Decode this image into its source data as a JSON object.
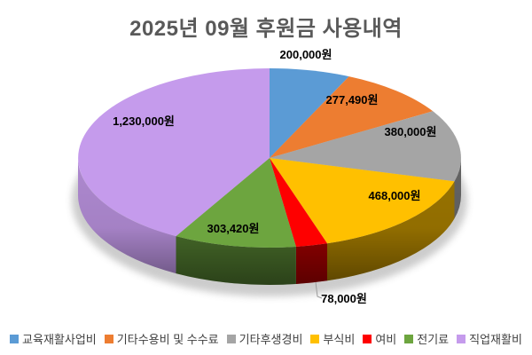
{
  "chart_data": {
    "type": "pie",
    "effect": "3d",
    "title": "2025년 09월 후원금 사용내역",
    "categories": [
      "교육재활사업비",
      "기타수용비 및 수수료",
      "기타후생경비",
      "부식비",
      "여비",
      "전기료",
      "직업재활비"
    ],
    "values": [
      200000,
      277490,
      380000,
      468000,
      78000,
      303420,
      1230000
    ],
    "labels": [
      "200,000원",
      "277,490원",
      "380,000원",
      "468,000원",
      "78,000원",
      "303,420원",
      "1,230,000원"
    ],
    "colors": [
      "#5B9BD5",
      "#ED7D31",
      "#A5A5A5",
      "#FFC000",
      "#FE0000",
      "#6DA53F",
      "#C59BEC"
    ],
    "total": 2936910,
    "unit": "원",
    "start_angle_deg": 0,
    "direction": "clockwise",
    "legend_position": "bottom",
    "title_color": "#595959",
    "label_color": "#000000",
    "legend_text_color": "#404040",
    "background": "#FFFFFF"
  }
}
